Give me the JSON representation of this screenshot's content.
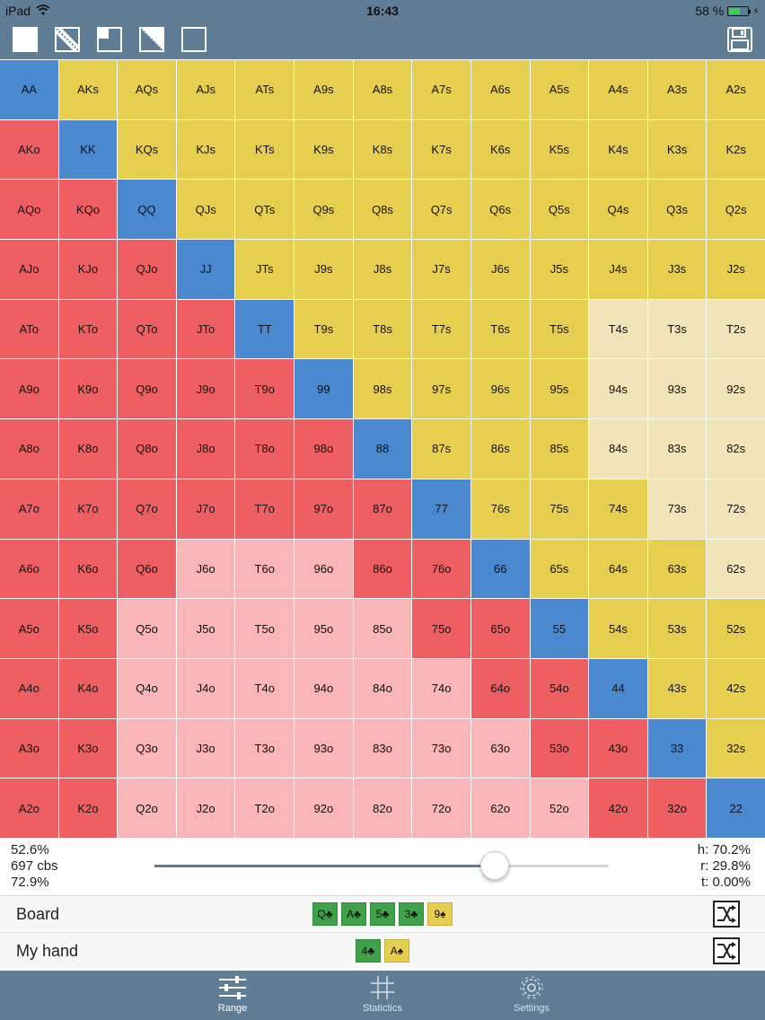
{
  "status": {
    "device": "iPad",
    "time": "16:43",
    "battery": "58 %",
    "battery_level": 0.58
  },
  "toolbar": {
    "tools": [
      "fill-all-icon",
      "diagonal-icon",
      "quarter-icon",
      "triangle-icon",
      "empty-square-icon"
    ],
    "save_icon": "floppy-disk-icon"
  },
  "colors": {
    "pair": "#4a88d0",
    "suited": "#e6cf4e",
    "suited_light": "#f0e4b8",
    "offsuit": "#ee5f63",
    "offsuit_light": "#f9b5b8",
    "card_green": "#3fa14a",
    "card_yellow": "#e6cf4e",
    "bar": "#5f7d94"
  },
  "grid": {
    "rows": [
      [
        "AA",
        "AKs",
        "AQs",
        "AJs",
        "ATs",
        "A9s",
        "A8s",
        "A7s",
        "A6s",
        "A5s",
        "A4s",
        "A3s",
        "A2s"
      ],
      [
        "AKo",
        "KK",
        "KQs",
        "KJs",
        "KTs",
        "K9s",
        "K8s",
        "K7s",
        "K6s",
        "K5s",
        "K4s",
        "K3s",
        "K2s"
      ],
      [
        "AQo",
        "KQo",
        "QQ",
        "QJs",
        "QTs",
        "Q9s",
        "Q8s",
        "Q7s",
        "Q6s",
        "Q5s",
        "Q4s",
        "Q3s",
        "Q2s"
      ],
      [
        "AJo",
        "KJo",
        "QJo",
        "JJ",
        "JTs",
        "J9s",
        "J8s",
        "J7s",
        "J6s",
        "J5s",
        "J4s",
        "J3s",
        "J2s"
      ],
      [
        "ATo",
        "KTo",
        "QTo",
        "JTo",
        "TT",
        "T9s",
        "T8s",
        "T7s",
        "T6s",
        "T5s",
        "T4s",
        "T3s",
        "T2s"
      ],
      [
        "A9o",
        "K9o",
        "Q9o",
        "J9o",
        "T9o",
        "99",
        "98s",
        "97s",
        "96s",
        "95s",
        "94s",
        "93s",
        "92s"
      ],
      [
        "A8o",
        "K8o",
        "Q8o",
        "J8o",
        "T8o",
        "98o",
        "88",
        "87s",
        "86s",
        "85s",
        "84s",
        "83s",
        "82s"
      ],
      [
        "A7o",
        "K7o",
        "Q7o",
        "J7o",
        "T7o",
        "97o",
        "87o",
        "77",
        "76s",
        "75s",
        "74s",
        "73s",
        "72s"
      ],
      [
        "A6o",
        "K6o",
        "Q6o",
        "J6o",
        "T6o",
        "96o",
        "86o",
        "76o",
        "66",
        "65s",
        "64s",
        "63s",
        "62s"
      ],
      [
        "A5o",
        "K5o",
        "Q5o",
        "J5o",
        "T5o",
        "95o",
        "85o",
        "75o",
        "65o",
        "55",
        "54s",
        "53s",
        "52s"
      ],
      [
        "A4o",
        "K4o",
        "Q4o",
        "J4o",
        "T4o",
        "94o",
        "84o",
        "74o",
        "64o",
        "54o",
        "44",
        "43s",
        "42s"
      ],
      [
        "A3o",
        "K3o",
        "Q3o",
        "J3o",
        "T3o",
        "93o",
        "83o",
        "73o",
        "63o",
        "53o",
        "43o",
        "33",
        "32s"
      ],
      [
        "A2o",
        "K2o",
        "Q2o",
        "J2o",
        "T2o",
        "92o",
        "82o",
        "72o",
        "62o",
        "52o",
        "42o",
        "32o",
        "22"
      ]
    ],
    "types": [
      "PSSSSSSSSSSSS",
      "OPSSSSSSSSSSS",
      "OOPSSSSSSSSSS",
      "OOOPSSSSSSSSS",
      "OOOOPSSSSSLLL",
      "OOOOOPSSSSLLL",
      "OOOOOOPSSSLLL",
      "OOOOOOOPSSSLL",
      "OOOrrrOOPSSSL",
      "OOrrrrrOOPSSS",
      "OOrrrrrrOOPSS",
      "OOrrrrrrrOOPS",
      "OOrrrrrrrrOOP"
    ]
  },
  "stats": {
    "left": [
      "52.6%",
      "697 cbs",
      "72.9%"
    ],
    "right": [
      "h: 70.2%",
      "r: 29.8%",
      "t: 0.00%"
    ],
    "slider_value": 0.75
  },
  "board": {
    "label": "Board",
    "cards": [
      {
        "text": "Q♣",
        "color": "green"
      },
      {
        "text": "A♣",
        "color": "green"
      },
      {
        "text": "5♣",
        "color": "green"
      },
      {
        "text": "3♣",
        "color": "green"
      },
      {
        "text": "9♠",
        "color": "yellow"
      }
    ],
    "shuffle_icon": "shuffle-icon"
  },
  "hand": {
    "label": "My hand",
    "cards": [
      {
        "text": "4♣",
        "color": "green"
      },
      {
        "text": "A♠",
        "color": "yellow"
      }
    ],
    "shuffle_icon": "shuffle-icon"
  },
  "tabs": [
    {
      "label": "Range",
      "icon": "sliders-icon",
      "active": true
    },
    {
      "label": "Statictics",
      "icon": "hash-grid-icon",
      "active": false
    },
    {
      "label": "Settings",
      "icon": "gear-icon",
      "active": false
    }
  ]
}
